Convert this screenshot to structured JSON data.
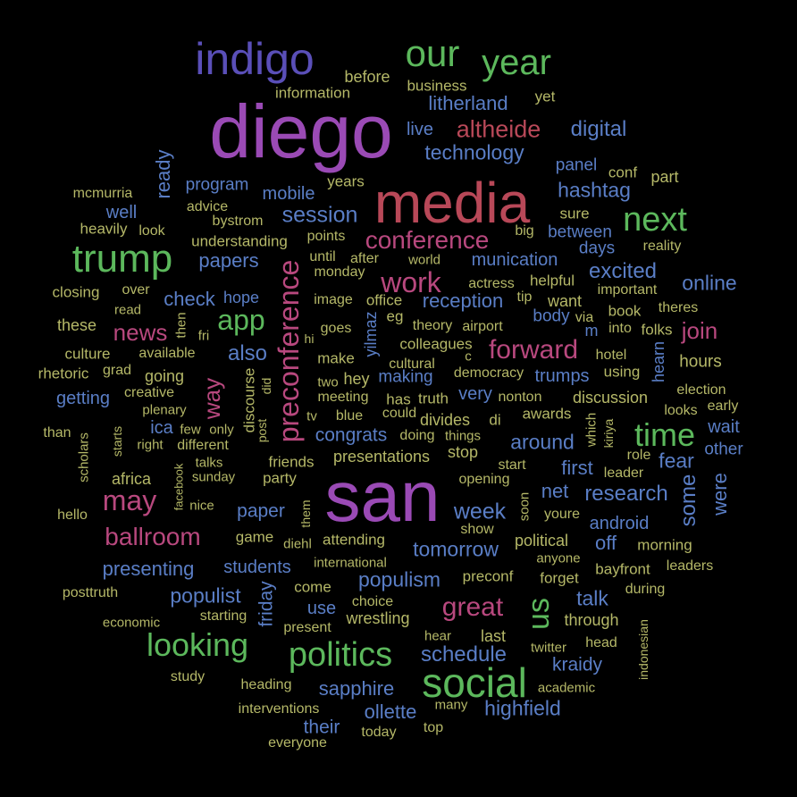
{
  "colors": {
    "background": "#000000",
    "purple": "#9a4ab5",
    "indigo": "#5a4fb8",
    "red": "#b84858",
    "pink": "#b8487e",
    "green": "#5cb85c",
    "blue": "#5a7ec6",
    "khaki": "#b5b868"
  },
  "words": [
    {
      "text": "diego",
      "color": "purple"
    },
    {
      "text": "san",
      "color": "purple"
    },
    {
      "text": "media",
      "color": "red"
    },
    {
      "text": "indigo",
      "color": "indigo"
    },
    {
      "text": "social",
      "color": "green"
    },
    {
      "text": "our",
      "color": "green"
    },
    {
      "text": "year",
      "color": "green"
    },
    {
      "text": "trump",
      "color": "green"
    },
    {
      "text": "next",
      "color": "green"
    },
    {
      "text": "time",
      "color": "green"
    },
    {
      "text": "politics",
      "color": "green"
    },
    {
      "text": "looking",
      "color": "green"
    },
    {
      "text": "preconference",
      "color": "pink"
    },
    {
      "text": "conference",
      "color": "pink"
    },
    {
      "text": "altheide",
      "color": "red"
    },
    {
      "text": "app",
      "color": "green"
    },
    {
      "text": "work",
      "color": "pink"
    },
    {
      "text": "forward",
      "color": "pink"
    },
    {
      "text": "may",
      "color": "pink"
    },
    {
      "text": "ballroom",
      "color": "pink"
    },
    {
      "text": "great",
      "color": "pink"
    },
    {
      "text": "us",
      "color": "green"
    },
    {
      "text": "news",
      "color": "pink"
    },
    {
      "text": "way",
      "color": "pink"
    },
    {
      "text": "join",
      "color": "pink"
    },
    {
      "text": "session",
      "color": "blue"
    },
    {
      "text": "digital",
      "color": "blue"
    },
    {
      "text": "technology",
      "color": "blue"
    },
    {
      "text": "litherland",
      "color": "blue"
    },
    {
      "text": "hashtag",
      "color": "blue"
    },
    {
      "text": "excited",
      "color": "blue"
    },
    {
      "text": "online",
      "color": "blue"
    },
    {
      "text": "reception",
      "color": "blue"
    },
    {
      "text": "research",
      "color": "blue"
    },
    {
      "text": "week",
      "color": "blue"
    },
    {
      "text": "populism",
      "color": "blue"
    },
    {
      "text": "schedule",
      "color": "blue"
    },
    {
      "text": "tomorrow",
      "color": "blue"
    },
    {
      "text": "highfield",
      "color": "blue"
    },
    {
      "text": "sapphire",
      "color": "blue"
    },
    {
      "text": "presenting",
      "color": "blue"
    },
    {
      "text": "populist",
      "color": "blue"
    },
    {
      "text": "papers",
      "color": "blue"
    },
    {
      "text": "check",
      "color": "blue"
    },
    {
      "text": "also",
      "color": "blue"
    },
    {
      "text": "congrats",
      "color": "blue"
    },
    {
      "text": "around",
      "color": "blue"
    },
    {
      "text": "fear",
      "color": "blue"
    },
    {
      "text": "some",
      "color": "blue"
    },
    {
      "text": "first",
      "color": "blue"
    },
    {
      "text": "net",
      "color": "blue"
    },
    {
      "text": "talk",
      "color": "blue"
    },
    {
      "text": "off",
      "color": "blue"
    },
    {
      "text": "kraidy",
      "color": "blue"
    },
    {
      "text": "ollette",
      "color": "blue"
    },
    {
      "text": "their",
      "color": "blue"
    },
    {
      "text": "mobile",
      "color": "blue"
    },
    {
      "text": "program",
      "color": "blue"
    },
    {
      "text": "well",
      "color": "blue"
    },
    {
      "text": "ready",
      "color": "blue"
    },
    {
      "text": "getting",
      "color": "blue"
    },
    {
      "text": "munication",
      "color": "blue"
    },
    {
      "text": "panel",
      "color": "blue"
    },
    {
      "text": "between",
      "color": "blue"
    },
    {
      "text": "days",
      "color": "blue"
    },
    {
      "text": "trumps",
      "color": "blue"
    },
    {
      "text": "very",
      "color": "blue"
    },
    {
      "text": "android",
      "color": "blue"
    },
    {
      "text": "were",
      "color": "blue"
    },
    {
      "text": "paper",
      "color": "blue"
    },
    {
      "text": "students",
      "color": "blue"
    },
    {
      "text": "friday",
      "color": "blue"
    },
    {
      "text": "use",
      "color": "blue"
    },
    {
      "text": "body",
      "color": "blue"
    },
    {
      "text": "ica",
      "color": "blue"
    },
    {
      "text": "making",
      "color": "blue"
    },
    {
      "text": "live",
      "color": "blue"
    },
    {
      "text": "yilmaz",
      "color": "blue"
    },
    {
      "text": "wait",
      "color": "blue"
    },
    {
      "text": "other",
      "color": "blue"
    },
    {
      "text": "hope",
      "color": "blue"
    },
    {
      "text": "m",
      "color": "blue"
    },
    {
      "text": "hearn",
      "color": "blue"
    },
    {
      "text": "information",
      "color": "khaki"
    },
    {
      "text": "before",
      "color": "khaki"
    },
    {
      "text": "business",
      "color": "khaki"
    },
    {
      "text": "yet",
      "color": "khaki"
    },
    {
      "text": "conf",
      "color": "khaki"
    },
    {
      "text": "part",
      "color": "khaki"
    },
    {
      "text": "sure",
      "color": "khaki"
    },
    {
      "text": "big",
      "color": "khaki"
    },
    {
      "text": "reality",
      "color": "khaki"
    },
    {
      "text": "mcmurria",
      "color": "khaki"
    },
    {
      "text": "advice",
      "color": "khaki"
    },
    {
      "text": "years",
      "color": "khaki"
    },
    {
      "text": "heavily",
      "color": "khaki"
    },
    {
      "text": "look",
      "color": "khaki"
    },
    {
      "text": "bystrom",
      "color": "khaki"
    },
    {
      "text": "understanding",
      "color": "khaki"
    },
    {
      "text": "points",
      "color": "khaki"
    },
    {
      "text": "until",
      "color": "khaki"
    },
    {
      "text": "after",
      "color": "khaki"
    },
    {
      "text": "world",
      "color": "khaki"
    },
    {
      "text": "monday",
      "color": "khaki"
    },
    {
      "text": "helpful",
      "color": "khaki"
    },
    {
      "text": "important",
      "color": "khaki"
    },
    {
      "text": "closing",
      "color": "khaki"
    },
    {
      "text": "over",
      "color": "khaki"
    },
    {
      "text": "read",
      "color": "khaki"
    },
    {
      "text": "image",
      "color": "khaki"
    },
    {
      "text": "office",
      "color": "khaki"
    },
    {
      "text": "actress",
      "color": "khaki"
    },
    {
      "text": "tip",
      "color": "khaki"
    },
    {
      "text": "want",
      "color": "khaki"
    },
    {
      "text": "book",
      "color": "khaki"
    },
    {
      "text": "theres",
      "color": "khaki"
    },
    {
      "text": "these",
      "color": "khaki"
    },
    {
      "text": "then",
      "color": "khaki"
    },
    {
      "text": "fri",
      "color": "khaki"
    },
    {
      "text": "hi",
      "color": "khaki"
    },
    {
      "text": "goes",
      "color": "khaki"
    },
    {
      "text": "eg",
      "color": "khaki"
    },
    {
      "text": "theory",
      "color": "khaki"
    },
    {
      "text": "airport",
      "color": "khaki"
    },
    {
      "text": "via",
      "color": "khaki"
    },
    {
      "text": "into",
      "color": "khaki"
    },
    {
      "text": "folks",
      "color": "khaki"
    },
    {
      "text": "culture",
      "color": "khaki"
    },
    {
      "text": "available",
      "color": "khaki"
    },
    {
      "text": "make",
      "color": "khaki"
    },
    {
      "text": "colleagues",
      "color": "khaki"
    },
    {
      "text": "c",
      "color": "khaki"
    },
    {
      "text": "hotel",
      "color": "khaki"
    },
    {
      "text": "hours",
      "color": "khaki"
    },
    {
      "text": "rhetoric",
      "color": "khaki"
    },
    {
      "text": "grad",
      "color": "khaki"
    },
    {
      "text": "going",
      "color": "khaki"
    },
    {
      "text": "discourse",
      "color": "khaki"
    },
    {
      "text": "did",
      "color": "khaki"
    },
    {
      "text": "two",
      "color": "khaki"
    },
    {
      "text": "hey",
      "color": "khaki"
    },
    {
      "text": "cultural",
      "color": "khaki"
    },
    {
      "text": "democracy",
      "color": "khaki"
    },
    {
      "text": "using",
      "color": "khaki"
    },
    {
      "text": "creative",
      "color": "khaki"
    },
    {
      "text": "meeting",
      "color": "khaki"
    },
    {
      "text": "has",
      "color": "khaki"
    },
    {
      "text": "truth",
      "color": "khaki"
    },
    {
      "text": "nonton",
      "color": "khaki"
    },
    {
      "text": "discussion",
      "color": "khaki"
    },
    {
      "text": "election",
      "color": "khaki"
    },
    {
      "text": "plenary",
      "color": "khaki"
    },
    {
      "text": "tv",
      "color": "khaki"
    },
    {
      "text": "blue",
      "color": "khaki"
    },
    {
      "text": "could",
      "color": "khaki"
    },
    {
      "text": "divides",
      "color": "khaki"
    },
    {
      "text": "di",
      "color": "khaki"
    },
    {
      "text": "awards",
      "color": "khaki"
    },
    {
      "text": "which",
      "color": "khaki"
    },
    {
      "text": "looks",
      "color": "khaki"
    },
    {
      "text": "early",
      "color": "khaki"
    },
    {
      "text": "than",
      "color": "khaki"
    },
    {
      "text": "scholars",
      "color": "khaki"
    },
    {
      "text": "starts",
      "color": "khaki"
    },
    {
      "text": "right",
      "color": "khaki"
    },
    {
      "text": "few",
      "color": "khaki"
    },
    {
      "text": "only",
      "color": "khaki"
    },
    {
      "text": "post",
      "color": "khaki"
    },
    {
      "text": "doing",
      "color": "khaki"
    },
    {
      "text": "things",
      "color": "khaki"
    },
    {
      "text": "kiriya",
      "color": "khaki"
    },
    {
      "text": "different",
      "color": "khaki"
    },
    {
      "text": "role",
      "color": "khaki"
    },
    {
      "text": "talks",
      "color": "khaki"
    },
    {
      "text": "friends",
      "color": "khaki"
    },
    {
      "text": "presentations",
      "color": "khaki"
    },
    {
      "text": "stop",
      "color": "khaki"
    },
    {
      "text": "start",
      "color": "khaki"
    },
    {
      "text": "africa",
      "color": "khaki"
    },
    {
      "text": "sunday",
      "color": "khaki"
    },
    {
      "text": "party",
      "color": "khaki"
    },
    {
      "text": "opening",
      "color": "khaki"
    },
    {
      "text": "leader",
      "color": "khaki"
    },
    {
      "text": "facebook",
      "color": "khaki"
    },
    {
      "text": "nice",
      "color": "khaki"
    },
    {
      "text": "them",
      "color": "khaki"
    },
    {
      "text": "soon",
      "color": "khaki"
    },
    {
      "text": "youre",
      "color": "khaki"
    },
    {
      "text": "hello",
      "color": "khaki"
    },
    {
      "text": "game",
      "color": "khaki"
    },
    {
      "text": "diehl",
      "color": "khaki"
    },
    {
      "text": "attending",
      "color": "khaki"
    },
    {
      "text": "show",
      "color": "khaki"
    },
    {
      "text": "political",
      "color": "khaki"
    },
    {
      "text": "morning",
      "color": "khaki"
    },
    {
      "text": "anyone",
      "color": "khaki"
    },
    {
      "text": "international",
      "color": "khaki"
    },
    {
      "text": "bayfront",
      "color": "khaki"
    },
    {
      "text": "leaders",
      "color": "khaki"
    },
    {
      "text": "forget",
      "color": "khaki"
    },
    {
      "text": "preconf",
      "color": "khaki"
    },
    {
      "text": "come",
      "color": "khaki"
    },
    {
      "text": "choice",
      "color": "khaki"
    },
    {
      "text": "during",
      "color": "khaki"
    },
    {
      "text": "posttruth",
      "color": "khaki"
    },
    {
      "text": "wrestling",
      "color": "khaki"
    },
    {
      "text": "through",
      "color": "khaki"
    },
    {
      "text": "starting",
      "color": "khaki"
    },
    {
      "text": "economic",
      "color": "khaki"
    },
    {
      "text": "present",
      "color": "khaki"
    },
    {
      "text": "hear",
      "color": "khaki"
    },
    {
      "text": "last",
      "color": "khaki"
    },
    {
      "text": "indonesian",
      "color": "khaki"
    },
    {
      "text": "head",
      "color": "khaki"
    },
    {
      "text": "twitter",
      "color": "khaki"
    },
    {
      "text": "study",
      "color": "khaki"
    },
    {
      "text": "heading",
      "color": "khaki"
    },
    {
      "text": "academic",
      "color": "khaki"
    },
    {
      "text": "interventions",
      "color": "khaki"
    },
    {
      "text": "many",
      "color": "khaki"
    },
    {
      "text": "today",
      "color": "khaki"
    },
    {
      "text": "top",
      "color": "khaki"
    },
    {
      "text": "everyone",
      "color": "khaki"
    }
  ]
}
